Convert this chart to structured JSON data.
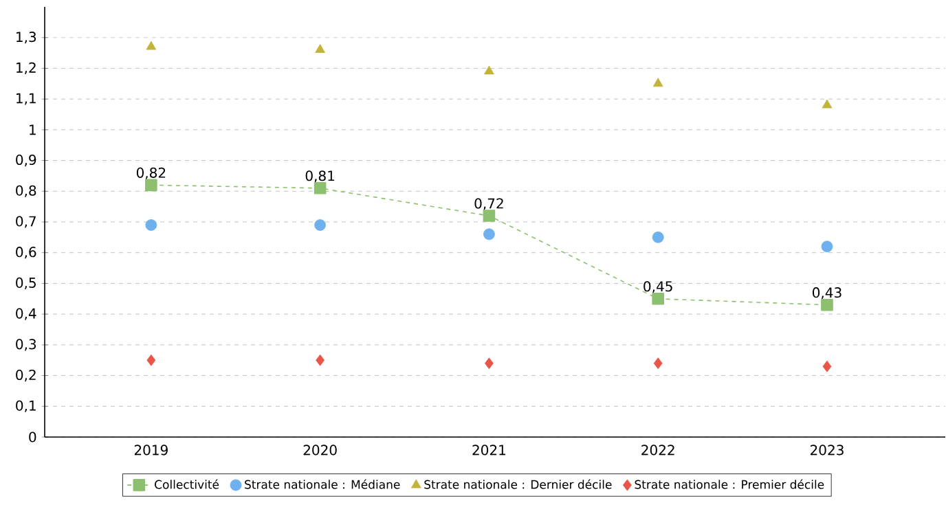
{
  "chart_data": {
    "type": "line",
    "categories": [
      "2019",
      "2020",
      "2021",
      "2022",
      "2023"
    ],
    "series": [
      {
        "name": "Collectivité",
        "type": "line",
        "color": "#8cbf6e",
        "marker": "square",
        "line_style": "dashed",
        "values": [
          0.82,
          0.81,
          0.72,
          0.45,
          0.43
        ],
        "value_labels": [
          "0,82",
          "0,81",
          "0,72",
          "0,45",
          "0,43"
        ]
      },
      {
        "name": "Strate nationale : Médiane",
        "type": "scatter",
        "color": "#6eb1ee",
        "marker": "circle",
        "values": [
          0.69,
          0.69,
          0.66,
          0.65,
          0.62
        ]
      },
      {
        "name": "Strate nationale : Dernier décile",
        "type": "scatter",
        "color": "#c4b33a",
        "marker": "triangle",
        "values": [
          1.27,
          1.26,
          1.19,
          1.15,
          1.08
        ]
      },
      {
        "name": "Strate nationale : Premier décile",
        "type": "scatter",
        "color": "#e8564a",
        "marker": "diamond",
        "values": [
          0.25,
          0.25,
          0.24,
          0.24,
          0.23
        ]
      }
    ],
    "ylim": [
      0,
      1.4
    ],
    "yticks": [
      {
        "value": 0,
        "label": "0"
      },
      {
        "value": 0.1,
        "label": "0,1"
      },
      {
        "value": 0.2,
        "label": "0,2"
      },
      {
        "value": 0.3,
        "label": "0,3"
      },
      {
        "value": 0.4,
        "label": "0,4"
      },
      {
        "value": 0.5,
        "label": "0,5"
      },
      {
        "value": 0.6,
        "label": "0,6"
      },
      {
        "value": 0.7,
        "label": "0,7"
      },
      {
        "value": 0.8,
        "label": "0,8"
      },
      {
        "value": 0.9,
        "label": "0,9"
      },
      {
        "value": 1,
        "label": "1"
      },
      {
        "value": 1.1,
        "label": "1,1"
      },
      {
        "value": 1.2,
        "label": "1,2"
      },
      {
        "value": 1.3,
        "label": "1,3"
      }
    ],
    "grid": "y",
    "legend": "bottom"
  }
}
